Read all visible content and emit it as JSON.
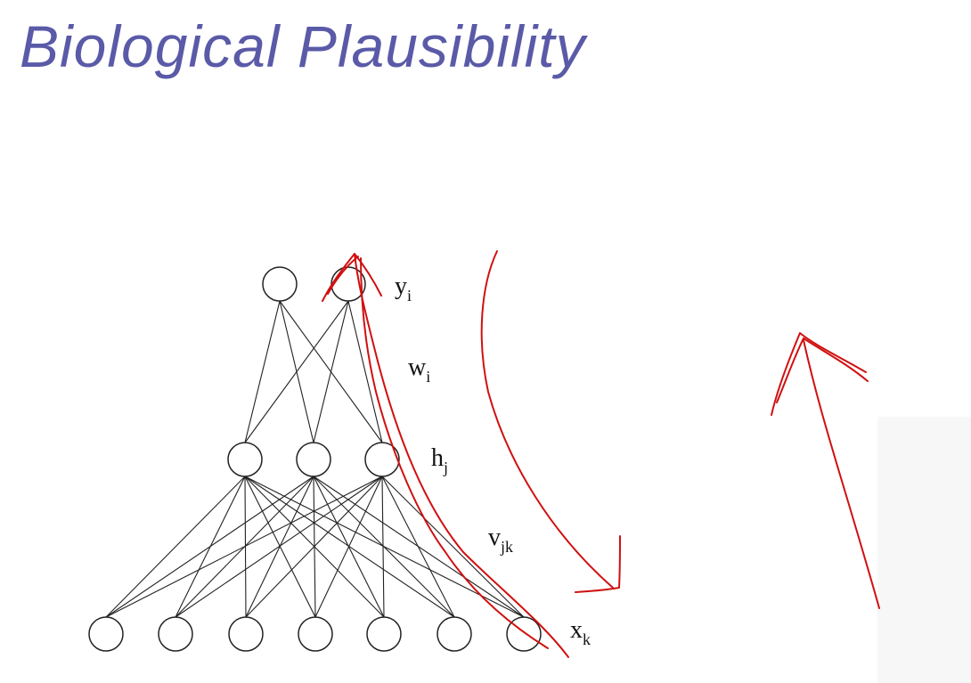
{
  "title": "Biological Plausibility",
  "labels": {
    "output": {
      "base": "y",
      "sub": "i"
    },
    "weights_out": {
      "base": "w",
      "sub": "i"
    },
    "hidden": {
      "base": "h",
      "sub": "j"
    },
    "weights_in": {
      "base": "v",
      "sub": "jk"
    },
    "input": {
      "base": "x",
      "sub": "k"
    }
  },
  "colors": {
    "title": "#5a5aa8",
    "annotation": "#d01010",
    "node_stroke": "#222222"
  },
  "layers": {
    "output_count": 2,
    "hidden_count": 3,
    "input_count": 7
  }
}
